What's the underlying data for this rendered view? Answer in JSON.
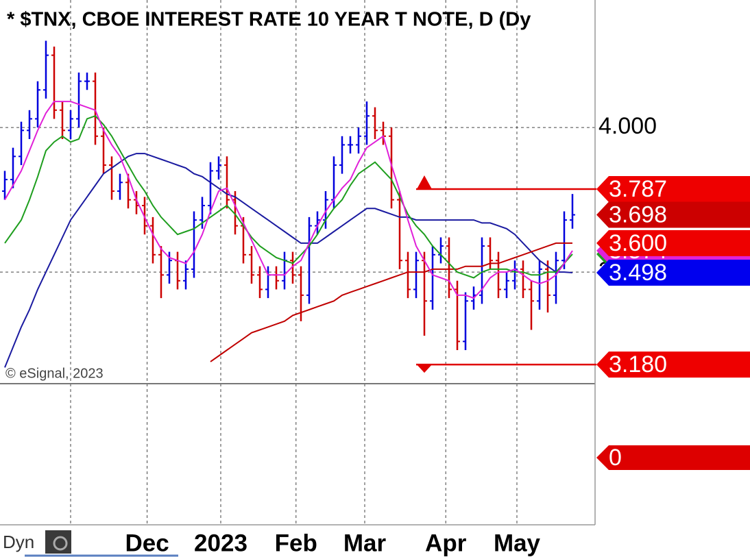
{
  "chart_data": {
    "type": "ohlc",
    "title": "* $TNX, CBOE INTEREST RATE 10 YEAR T NOTE, D (Dy",
    "copyright": "© eSignal, 2023",
    "mode_label": "Dyn",
    "up_color": "#0000dd",
    "down_color": "#cc0000",
    "xlim": [
      -0.583,
      71.75
    ],
    "ylim": [
      3.114,
      4.441
    ],
    "yticks": [
      {
        "value": 4.0,
        "label": "4.000"
      },
      {
        "value": 3.5,
        "label": "3.500"
      }
    ],
    "xgrid": [
      8,
      17.3,
      26.25,
      35.4,
      43.75,
      53.6,
      62.25
    ],
    "xticks": [
      {
        "value": 17.3,
        "label": "Dec"
      },
      {
        "value": 26.25,
        "label": "2023"
      },
      {
        "value": 35.4,
        "label": "Feb"
      },
      {
        "value": 43.75,
        "label": "Mar"
      },
      {
        "value": 53.6,
        "label": "Apr"
      },
      {
        "value": 62.25,
        "label": "May"
      }
    ],
    "open": [
      3.78,
      3.82,
      3.9,
      3.99,
      4.03,
      4.13,
      4.25,
      4.06,
      3.99,
      4.03,
      4.16,
      4.16,
      3.97,
      3.87,
      3.78,
      3.81,
      3.75,
      3.73,
      3.66,
      3.56,
      3.49,
      3.54,
      3.47,
      3.51,
      3.68,
      3.73,
      3.85,
      3.87,
      3.75,
      3.66,
      3.56,
      3.49,
      3.44,
      3.49,
      3.47,
      3.54,
      3.49,
      3.42,
      3.66,
      3.68,
      3.75,
      3.87,
      3.94,
      3.94,
      3.97,
      4.04,
      3.99,
      3.97,
      3.75,
      3.54,
      3.44,
      3.54,
      3.4,
      3.56,
      3.59,
      3.44,
      3.26,
      3.4,
      3.42,
      3.59,
      3.54,
      3.44,
      3.47,
      3.51,
      3.44,
      3.4,
      3.51,
      3.42,
      3.54,
      3.68
    ],
    "high": [
      3.85,
      3.93,
      4.02,
      4.06,
      4.16,
      4.3,
      4.28,
      4.09,
      4.06,
      4.19,
      4.19,
      4.19,
      4.0,
      3.9,
      3.84,
      3.84,
      3.78,
      3.76,
      3.69,
      3.59,
      3.57,
      3.57,
      3.54,
      3.71,
      3.76,
      3.88,
      3.9,
      3.9,
      3.78,
      3.69,
      3.59,
      3.52,
      3.52,
      3.52,
      3.57,
      3.57,
      3.52,
      3.69,
      3.71,
      3.78,
      3.9,
      3.97,
      3.97,
      4.0,
      4.09,
      4.07,
      4.02,
      4.0,
      3.78,
      3.57,
      3.57,
      3.57,
      3.59,
      3.62,
      3.62,
      3.47,
      3.43,
      3.45,
      3.62,
      3.62,
      3.57,
      3.5,
      3.54,
      3.54,
      3.47,
      3.54,
      3.54,
      3.57,
      3.71,
      3.77
    ],
    "low": [
      3.75,
      3.79,
      3.87,
      3.96,
      4.0,
      4.1,
      4.03,
      3.96,
      3.96,
      4.0,
      4.13,
      3.94,
      3.84,
      3.75,
      3.75,
      3.72,
      3.7,
      3.63,
      3.53,
      3.41,
      3.46,
      3.44,
      3.44,
      3.48,
      3.65,
      3.7,
      3.82,
      3.72,
      3.63,
      3.53,
      3.46,
      3.41,
      3.41,
      3.44,
      3.44,
      3.46,
      3.33,
      3.39,
      3.63,
      3.65,
      3.72,
      3.84,
      3.91,
      3.91,
      3.94,
      3.96,
      3.94,
      3.72,
      3.51,
      3.41,
      3.41,
      3.28,
      3.37,
      3.53,
      3.41,
      3.23,
      3.23,
      3.37,
      3.39,
      3.51,
      3.41,
      3.41,
      3.44,
      3.41,
      3.3,
      3.37,
      3.36,
      3.39,
      3.51,
      3.65
    ],
    "close": [
      3.82,
      3.9,
      3.99,
      4.03,
      4.13,
      4.25,
      4.06,
      3.99,
      4.03,
      4.16,
      4.16,
      3.97,
      3.87,
      3.78,
      3.81,
      3.75,
      3.73,
      3.66,
      3.56,
      3.49,
      3.54,
      3.47,
      3.51,
      3.68,
      3.73,
      3.85,
      3.87,
      3.75,
      3.66,
      3.56,
      3.49,
      3.44,
      3.49,
      3.47,
      3.54,
      3.49,
      3.42,
      3.66,
      3.68,
      3.75,
      3.87,
      3.94,
      3.94,
      3.97,
      4.04,
      3.99,
      3.97,
      3.75,
      3.54,
      3.44,
      3.54,
      3.4,
      3.56,
      3.59,
      3.44,
      3.26,
      3.4,
      3.42,
      3.59,
      3.54,
      3.44,
      3.47,
      3.51,
      3.44,
      3.4,
      3.51,
      3.42,
      3.54,
      3.68,
      3.698
    ],
    "series": [
      {
        "color": "#1a1aa0",
        "values": [
          3.17,
          3.24,
          3.31,
          3.37,
          3.44,
          3.5,
          3.56,
          3.62,
          3.68,
          3.72,
          3.76,
          3.8,
          3.84,
          3.86,
          3.88,
          3.9,
          3.91,
          3.91,
          3.9,
          3.89,
          3.88,
          3.87,
          3.86,
          3.84,
          3.83,
          3.81,
          3.79,
          3.77,
          3.76,
          3.74,
          3.72,
          3.7,
          3.68,
          3.66,
          3.64,
          3.62,
          3.6,
          3.6,
          3.6,
          3.62,
          3.64,
          3.66,
          3.68,
          3.7,
          3.72,
          3.72,
          3.71,
          3.7,
          3.69,
          3.69,
          3.68,
          3.68,
          3.68,
          3.68,
          3.68,
          3.68,
          3.68,
          3.68,
          3.67,
          3.67,
          3.66,
          3.65,
          3.63,
          3.6,
          3.57,
          3.54,
          3.52,
          3.5,
          3.5,
          3.498
        ]
      },
      {
        "color": "#c00000",
        "values": [
          null,
          null,
          null,
          null,
          null,
          null,
          null,
          null,
          null,
          null,
          null,
          null,
          null,
          null,
          null,
          null,
          null,
          null,
          null,
          null,
          null,
          null,
          null,
          null,
          null,
          3.19,
          3.21,
          3.23,
          3.25,
          3.27,
          3.29,
          3.3,
          3.31,
          3.32,
          3.33,
          3.35,
          3.36,
          3.37,
          3.38,
          3.39,
          3.4,
          3.42,
          3.43,
          3.44,
          3.45,
          3.46,
          3.47,
          3.48,
          3.49,
          3.5,
          3.5,
          3.5,
          3.51,
          3.51,
          3.51,
          3.51,
          3.52,
          3.52,
          3.52,
          3.53,
          3.53,
          3.54,
          3.55,
          3.56,
          3.57,
          3.58,
          3.59,
          3.6,
          3.6,
          3.6
        ]
      },
      {
        "color": "#1e9e1e",
        "values": [
          3.6,
          3.64,
          3.68,
          3.75,
          3.83,
          3.92,
          3.95,
          3.97,
          3.95,
          3.96,
          4.03,
          4.04,
          4.01,
          3.97,
          3.92,
          3.87,
          3.82,
          3.78,
          3.73,
          3.69,
          3.66,
          3.63,
          3.64,
          3.65,
          3.67,
          3.69,
          3.71,
          3.73,
          3.7,
          3.66,
          3.62,
          3.59,
          3.57,
          3.55,
          3.54,
          3.53,
          3.56,
          3.59,
          3.63,
          3.68,
          3.72,
          3.75,
          3.8,
          3.84,
          3.86,
          3.88,
          3.85,
          3.82,
          3.76,
          3.7,
          3.66,
          3.63,
          3.59,
          3.56,
          3.53,
          3.5,
          3.49,
          3.48,
          3.5,
          3.51,
          3.51,
          3.51,
          3.5,
          3.5,
          3.49,
          3.49,
          3.5,
          3.5,
          3.53,
          3.562
        ]
      },
      {
        "color": "#e020d8",
        "values": [
          3.75,
          3.8,
          3.85,
          3.92,
          3.99,
          4.05,
          4.09,
          4.09,
          4.09,
          4.08,
          4.07,
          4.06,
          3.99,
          3.94,
          3.9,
          3.83,
          3.75,
          3.69,
          3.63,
          3.58,
          3.55,
          3.54,
          3.53,
          3.57,
          3.63,
          3.71,
          3.78,
          3.79,
          3.73,
          3.67,
          3.61,
          3.55,
          3.49,
          3.49,
          3.49,
          3.52,
          3.54,
          3.6,
          3.66,
          3.71,
          3.75,
          3.79,
          3.82,
          3.88,
          3.93,
          3.95,
          3.97,
          3.87,
          3.78,
          3.68,
          3.59,
          3.54,
          3.49,
          3.48,
          3.47,
          3.42,
          3.42,
          3.41,
          3.44,
          3.48,
          3.5,
          3.5,
          3.51,
          3.49,
          3.47,
          3.46,
          3.47,
          3.49,
          3.53,
          3.574
        ]
      }
    ],
    "alert_lines": [
      3.787,
      3.18
    ],
    "price_markers": [
      {
        "value": 3.562,
        "color": "#1e9e1e"
      },
      {
        "value": 3.574,
        "color": "#e020d8"
      },
      {
        "value": 3.787,
        "color": "#ee0000"
      },
      {
        "value": 3.698,
        "color": "#cc0000"
      },
      {
        "value": 3.6,
        "label": "3.600",
        "color": "#ee0000"
      },
      {
        "value": 3.498,
        "color": "#0000ee"
      },
      {
        "value": 3.18,
        "label": "3.180",
        "color": "#ee0000"
      }
    ],
    "indicator": {
      "value": 0,
      "color": "#dd0000"
    }
  }
}
